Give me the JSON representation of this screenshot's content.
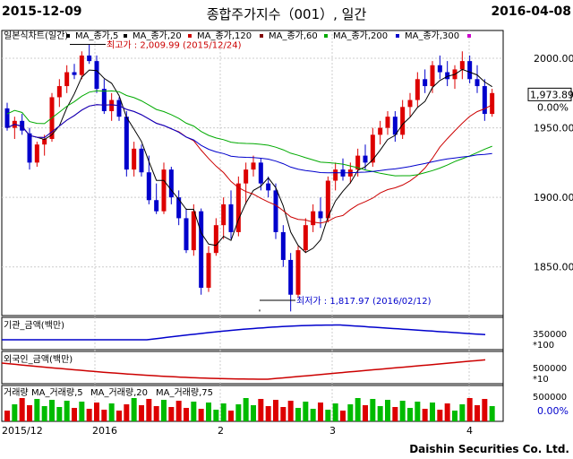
{
  "header": {
    "start_date": "2015-12-09",
    "title": "종합주가지수（001）, 일간",
    "end_date": "2016-04-08"
  },
  "footer": {
    "company": "Daishin Securities Co. Ltd."
  },
  "price_panel": {
    "legend": [
      {
        "label": "일본식차트(일간)",
        "color": "#000000"
      },
      {
        "label": "MA_종가,5",
        "color": "#000000"
      },
      {
        "label": "MA_종가,20",
        "color": "#cc0000"
      },
      {
        "label": "MA_종가,120",
        "color": "#800000"
      },
      {
        "label": "MA_종가,60",
        "color": "#00aa00"
      },
      {
        "label": "MA_종가,200",
        "color": "#0000cc"
      },
      {
        "label": "MA_종가,300",
        "color": "#cc00cc"
      }
    ],
    "y_ticks": [
      "2000.00",
      "1950.00",
      "1900.00",
      "1850.00"
    ],
    "current_value": "1,973.89",
    "current_change": "0.00%",
    "high_annotation": "최고가 : 2,009.99 (2015/12/24)",
    "low_annotation": "최저가 : 1,817.97 (2016/02/12)"
  },
  "institution_panel": {
    "title": "기관_금액(백만)",
    "y_ticks": [
      "350000"
    ],
    "scale": "*100"
  },
  "foreign_panel": {
    "title": "외국인_금액(백만)",
    "y_ticks": [
      "500000"
    ],
    "scale": "*10"
  },
  "volume_panel": {
    "legend": [
      {
        "label": "거래량",
        "color": "#000000"
      },
      {
        "label": "MA_거래량,5",
        "color": "#000000"
      },
      {
        "label": "MA_거래량,20",
        "color": "#00aa00"
      },
      {
        "label": "MA_거래량,75",
        "color": "#cc0000"
      }
    ],
    "y_ticks": [
      "500000"
    ],
    "change": "0.00%"
  },
  "x_axis": {
    "labels": [
      "2015/12",
      "2016",
      "2",
      "3",
      "4"
    ]
  },
  "colors": {
    "up": "#dd0000",
    "down": "#0000cc",
    "grid": "#cccccc"
  },
  "chart_data": {
    "type": "candlestick",
    "ylim": [
      1815,
      2020
    ],
    "candles": [
      [
        1964,
        1968,
        1948,
        1950
      ],
      [
        1950,
        1958,
        1942,
        1955
      ],
      [
        1955,
        1960,
        1945,
        1948
      ],
      [
        1946,
        1950,
        1920,
        1925
      ],
      [
        1925,
        1940,
        1922,
        1938
      ],
      [
        1938,
        1945,
        1930,
        1942
      ],
      [
        1942,
        1975,
        1940,
        1972
      ],
      [
        1972,
        1985,
        1965,
        1980
      ],
      [
        1980,
        1995,
        1975,
        1990
      ],
      [
        1990,
        1996,
        1985,
        1988
      ],
      [
        1988,
        2005,
        1985,
        2002
      ],
      [
        2002,
        2010,
        1996,
        1998
      ],
      [
        1998,
        2002,
        1975,
        1978
      ],
      [
        1978,
        1985,
        1960,
        1962
      ],
      [
        1962,
        1975,
        1955,
        1970
      ],
      [
        1970,
        1972,
        1955,
        1958
      ],
      [
        1958,
        1962,
        1915,
        1920
      ],
      [
        1920,
        1940,
        1915,
        1935
      ],
      [
        1935,
        1938,
        1915,
        1918
      ],
      [
        1918,
        1930,
        1895,
        1898
      ],
      [
        1898,
        1910,
        1888,
        1890
      ],
      [
        1890,
        1925,
        1888,
        1920
      ],
      [
        1920,
        1922,
        1895,
        1900
      ],
      [
        1900,
        1905,
        1880,
        1885
      ],
      [
        1885,
        1892,
        1860,
        1862
      ],
      [
        1862,
        1895,
        1858,
        1890
      ],
      [
        1890,
        1892,
        1830,
        1835
      ],
      [
        1835,
        1865,
        1832,
        1860
      ],
      [
        1860,
        1885,
        1858,
        1880
      ],
      [
        1880,
        1900,
        1870,
        1895
      ],
      [
        1895,
        1905,
        1870,
        1875
      ],
      [
        1875,
        1915,
        1872,
        1910
      ],
      [
        1910,
        1925,
        1895,
        1920
      ],
      [
        1920,
        1930,
        1915,
        1925
      ],
      [
        1925,
        1928,
        1905,
        1910
      ],
      [
        1910,
        1915,
        1900,
        1905
      ],
      [
        1905,
        1910,
        1870,
        1875
      ],
      [
        1875,
        1880,
        1850,
        1855
      ],
      [
        1855,
        1860,
        1818,
        1830
      ],
      [
        1830,
        1865,
        1828,
        1862
      ],
      [
        1862,
        1885,
        1860,
        1880
      ],
      [
        1880,
        1895,
        1875,
        1890
      ],
      [
        1890,
        1900,
        1878,
        1885
      ],
      [
        1885,
        1915,
        1882,
        1912
      ],
      [
        1912,
        1925,
        1905,
        1920
      ],
      [
        1920,
        1928,
        1912,
        1915
      ],
      [
        1915,
        1925,
        1910,
        1920
      ],
      [
        1920,
        1935,
        1915,
        1930
      ],
      [
        1930,
        1938,
        1920,
        1925
      ],
      [
        1925,
        1950,
        1922,
        1945
      ],
      [
        1945,
        1955,
        1938,
        1950
      ],
      [
        1950,
        1962,
        1945,
        1958
      ],
      [
        1958,
        1962,
        1940,
        1945
      ],
      [
        1945,
        1970,
        1942,
        1965
      ],
      [
        1965,
        1975,
        1958,
        1970
      ],
      [
        1970,
        1990,
        1965,
        1985
      ],
      [
        1985,
        1992,
        1975,
        1980
      ],
      [
        1980,
        1998,
        1975,
        1995
      ],
      [
        1995,
        2002,
        1985,
        1990
      ],
      [
        1990,
        1998,
        1980,
        1985
      ],
      [
        1985,
        1995,
        1978,
        1992
      ],
      [
        1992,
        2005,
        1985,
        1998
      ],
      [
        1998,
        2002,
        1982,
        1985
      ],
      [
        1985,
        1995,
        1975,
        1980
      ],
      [
        1980,
        1985,
        1955,
        1960
      ],
      [
        1960,
        1978,
        1958,
        1975
      ]
    ]
  }
}
